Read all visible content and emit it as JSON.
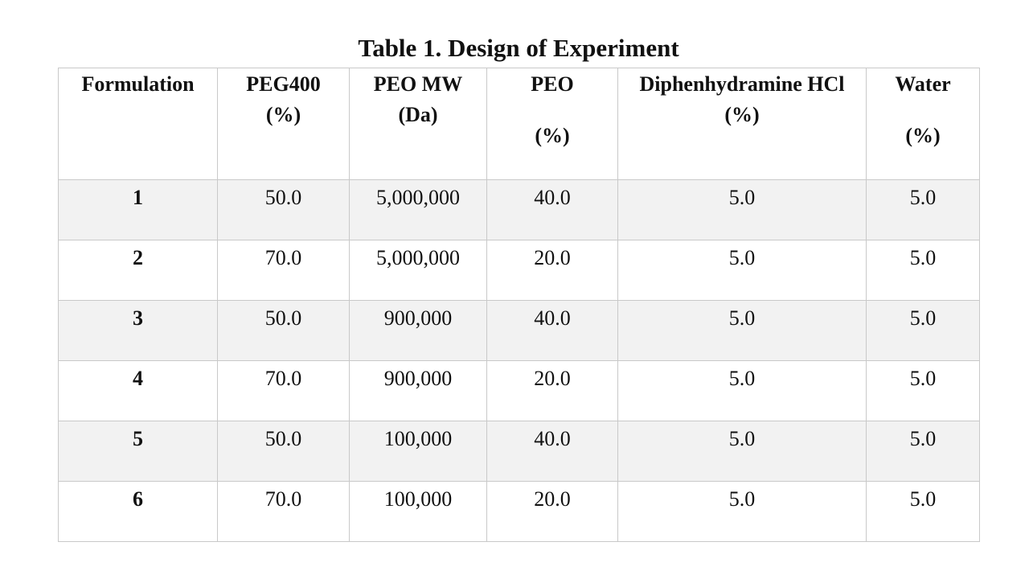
{
  "caption": "Table 1. Design of Experiment",
  "headers": [
    {
      "line1": "Formulation",
      "line2": ""
    },
    {
      "line1": "PEG400",
      "line2": "(%)"
    },
    {
      "line1": "PEO MW",
      "line2": "(Da)"
    },
    {
      "line1": "PEO",
      "line2": "(%)"
    },
    {
      "line1": "Diphenhydramine HCl",
      "line2": "(%)"
    },
    {
      "line1": "Water",
      "line2": "(%)"
    }
  ],
  "rows": [
    [
      "1",
      "50.0",
      "5,000,000",
      "40.0",
      "5.0",
      "5.0"
    ],
    [
      "2",
      "70.0",
      "5,000,000",
      "20.0",
      "5.0",
      "5.0"
    ],
    [
      "3",
      "50.0",
      "900,000",
      "40.0",
      "5.0",
      "5.0"
    ],
    [
      "4",
      "70.0",
      "900,000",
      "20.0",
      "5.0",
      "5.0"
    ],
    [
      "5",
      "50.0",
      "100,000",
      "40.0",
      "5.0",
      "5.0"
    ],
    [
      "6",
      "70.0",
      "100,000",
      "20.0",
      "5.0",
      "5.0"
    ]
  ]
}
